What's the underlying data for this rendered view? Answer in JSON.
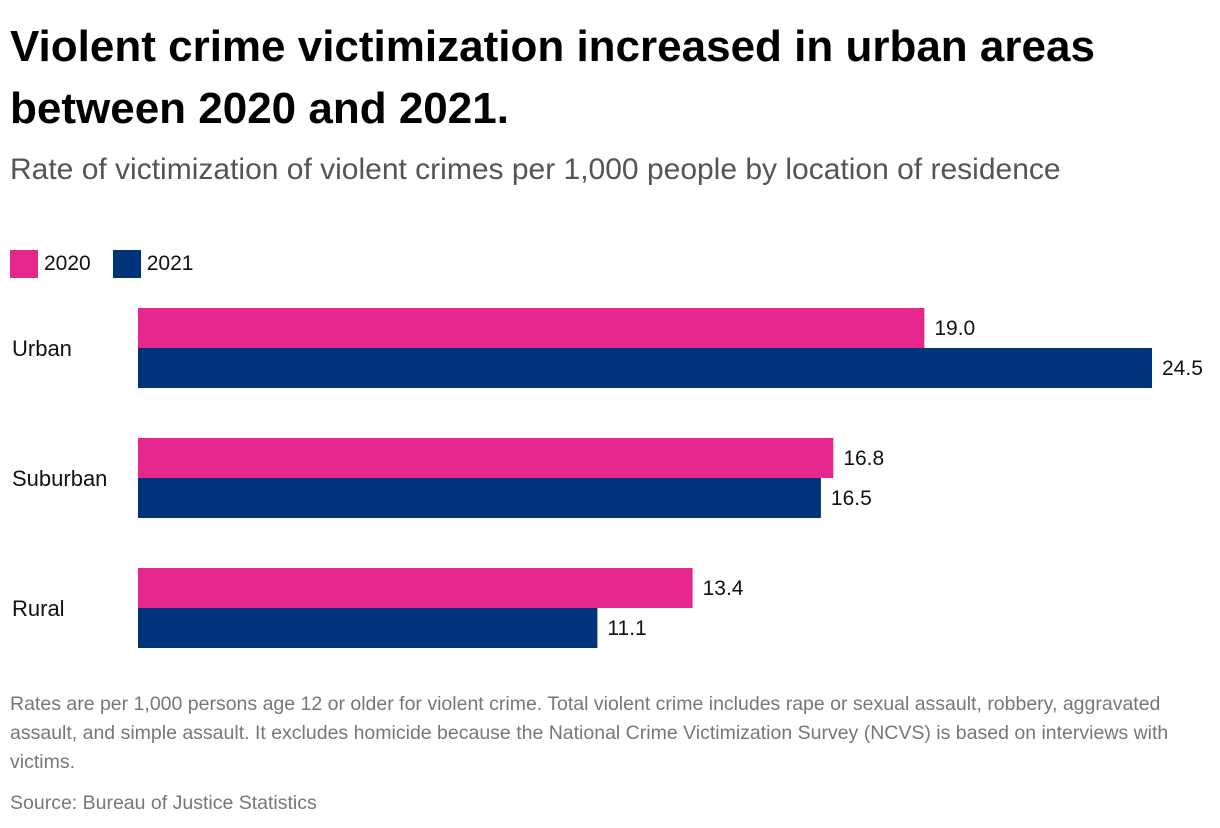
{
  "chart_data": {
    "type": "bar",
    "orientation": "horizontal",
    "title": "Violent crime victimization increased in urban areas between 2020 and 2021.",
    "subtitle": "Rate of victimization of violent crimes per 1,000 people by location of residence",
    "categories": [
      "Urban",
      "Suburban",
      "Rural"
    ],
    "series": [
      {
        "name": "2020",
        "values": [
          19.0,
          16.8,
          13.4
        ],
        "color": "#E6288E"
      },
      {
        "name": "2021",
        "values": [
          24.5,
          16.5,
          11.1
        ],
        "color": "#00347A"
      }
    ],
    "value_labels": [
      [
        "19.0",
        "16.8",
        "13.4"
      ],
      [
        "24.5",
        "16.5",
        "11.1"
      ]
    ],
    "xlim": [
      0,
      24.5
    ],
    "grid": false,
    "legend_position": "top-left",
    "note": "Rates are per 1,000 persons age 12 or older for violent crime. Total violent crime includes rape or sexual assault, robbery, aggravated assault, and simple assault. It excludes homicide because the National Crime Victimization Survey (NCVS) is based on interviews with victims.",
    "source": "Source: Bureau of Justice Statistics"
  }
}
